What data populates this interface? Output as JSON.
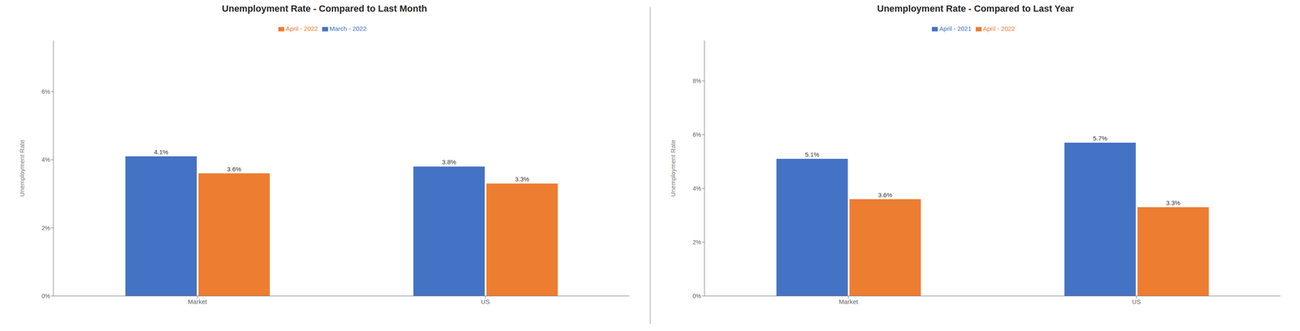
{
  "chart_data": [
    {
      "type": "bar",
      "title": "Unemployment Rate - Compared to Last Month",
      "categories": [
        "Market",
        "US"
      ],
      "series": [
        {
          "name": "March - 2022",
          "color": "#4472C4",
          "values": [
            0.041,
            0.038
          ],
          "value_labels": [
            "4.1%",
            "3.8%"
          ]
        },
        {
          "name": "April - 2022",
          "color": "#ED7D31",
          "values": [
            0.036,
            0.033
          ],
          "value_labels": [
            "3.6%",
            "3.3%"
          ]
        }
      ],
      "ylabel": "Unemployment Rate",
      "ylim": [
        0,
        0.075
      ],
      "yticks": [
        {
          "value": 0,
          "label": "0%"
        },
        {
          "value": 0.02,
          "label": "2%"
        },
        {
          "value": 0.04,
          "label": "4%"
        },
        {
          "value": 0.06,
          "label": "6%"
        }
      ],
      "data_labels": true,
      "grid": false,
      "legend": "top"
    },
    {
      "type": "bar",
      "title": "Unemployment Rate - Compared to Last Year",
      "categories": [
        "Market",
        "US"
      ],
      "series": [
        {
          "name": "April - 2021",
          "color": "#4472C4",
          "values": [
            0.051,
            0.057
          ],
          "value_labels": [
            "5.1%",
            "5.7%"
          ]
        },
        {
          "name": "April - 2022",
          "color": "#ED7D31",
          "values": [
            0.036,
            0.033
          ],
          "value_labels": [
            "3.6%",
            "3.3%"
          ]
        }
      ],
      "ylabel": "Unemployment Rate",
      "ylim": [
        0,
        0.095
      ],
      "yticks": [
        {
          "value": 0,
          "label": "0%"
        },
        {
          "value": 0.02,
          "label": "2%"
        },
        {
          "value": 0.04,
          "label": "4%"
        },
        {
          "value": 0.06,
          "label": "6%"
        },
        {
          "value": 0.08,
          "label": "8%"
        }
      ],
      "data_labels": true,
      "grid": false,
      "legend": "top"
    }
  ]
}
